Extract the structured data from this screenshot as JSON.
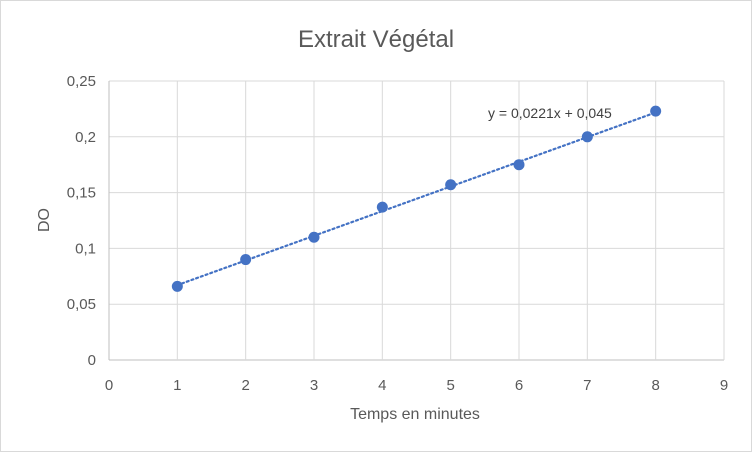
{
  "chart_data": {
    "type": "scatter",
    "title": "Extrait Végétal",
    "xlabel": "Temps en minutes",
    "ylabel": "DO",
    "xlim": [
      0,
      9
    ],
    "ylim": [
      0,
      0.25
    ],
    "xticks": [
      0,
      1,
      2,
      3,
      4,
      5,
      6,
      7,
      8,
      9
    ],
    "xtick_labels": [
      "0",
      "1",
      "2",
      "3",
      "4",
      "5",
      "6",
      "7",
      "8",
      "9"
    ],
    "yticks": [
      0,
      0.05,
      0.1,
      0.15,
      0.2,
      0.25
    ],
    "ytick_labels": [
      "0",
      "0,05",
      "0,1",
      "0,15",
      "0,2",
      "0,25"
    ],
    "grid": true,
    "legend": "none",
    "series": [
      {
        "x": [
          1,
          2,
          3,
          4,
          5,
          6,
          7,
          8
        ],
        "y": [
          0.066,
          0.09,
          0.11,
          0.137,
          0.157,
          0.175,
          0.2,
          0.223
        ],
        "color": "#4472C4"
      }
    ],
    "trendline": {
      "type": "linear",
      "slope": 0.0221,
      "intercept": 0.045,
      "x_range": [
        1,
        8
      ],
      "style": "dotted",
      "color": "#4472C4",
      "label": "y = 0,0221x + 0,045"
    }
  }
}
